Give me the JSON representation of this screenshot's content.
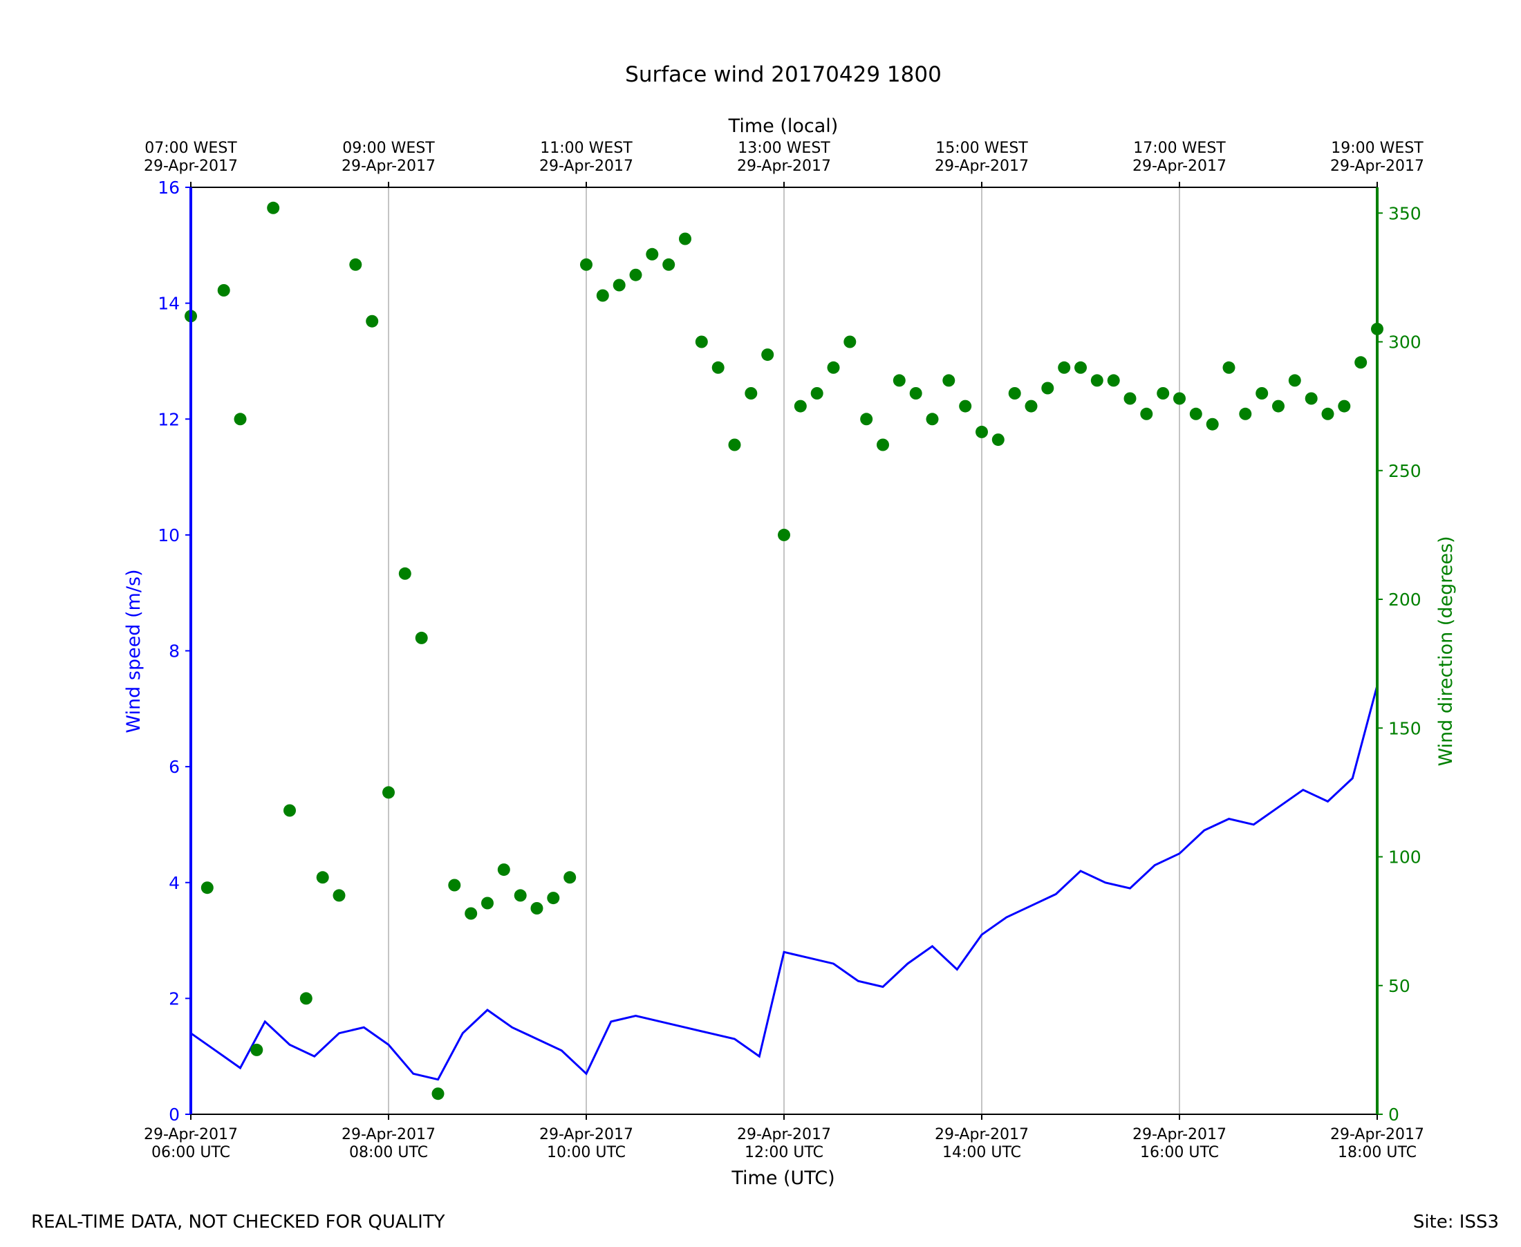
{
  "chart_data": {
    "type": "line",
    "title": "Surface wind 20170429 1800",
    "xlabel_bottom": "Time (UTC)",
    "xlabel_top": "Time (local)",
    "ylabel_left": "Wind speed (m/s)",
    "ylabel_right": "Wind direction (degrees)",
    "ylim_left": [
      0,
      16
    ],
    "ylim_right": [
      0,
      360
    ],
    "xlim": [
      "2017-04-29 06:00",
      "2017-04-29 18:00"
    ],
    "grid": "vertical lines at each bottom x tick",
    "left_ticks": [
      "0",
      "2",
      "4",
      "6",
      "8",
      "10",
      "12",
      "14",
      "16"
    ],
    "right_ticks": [
      "0",
      "50",
      "100",
      "150",
      "200",
      "250",
      "300",
      "350"
    ],
    "bottom_ticks": [
      {
        "date": "29-Apr-2017",
        "time": "06:00 UTC"
      },
      {
        "date": "29-Apr-2017",
        "time": "08:00 UTC"
      },
      {
        "date": "29-Apr-2017",
        "time": "10:00 UTC"
      },
      {
        "date": "29-Apr-2017",
        "time": "12:00 UTC"
      },
      {
        "date": "29-Apr-2017",
        "time": "14:00 UTC"
      },
      {
        "date": "29-Apr-2017",
        "time": "16:00 UTC"
      },
      {
        "date": "29-Apr-2017",
        "time": "18:00 UTC"
      }
    ],
    "top_ticks": [
      {
        "time": "07:00 WEST",
        "date": "29-Apr-2017"
      },
      {
        "time": "09:00 WEST",
        "date": "29-Apr-2017"
      },
      {
        "time": "11:00 WEST",
        "date": "29-Apr-2017"
      },
      {
        "time": "13:00 WEST",
        "date": "29-Apr-2017"
      },
      {
        "time": "15:00 WEST",
        "date": "29-Apr-2017"
      },
      {
        "time": "17:00 WEST",
        "date": "29-Apr-2017"
      },
      {
        "time": "19:00 WEST",
        "date": "29-Apr-2017"
      }
    ],
    "series": [
      {
        "axis": "left",
        "style": "line",
        "color": "#0000ff",
        "note": "wind speed (m/s) sampled every 15 min, 06:00-18:00 UTC",
        "x": [
          "06:00",
          "06:15",
          "06:30",
          "06:45",
          "07:00",
          "07:15",
          "07:30",
          "07:45",
          "08:00",
          "08:15",
          "08:30",
          "08:45",
          "09:00",
          "09:15",
          "09:30",
          "09:45",
          "10:00",
          "10:15",
          "10:30",
          "10:45",
          "11:00",
          "11:15",
          "11:30",
          "11:45",
          "12:00",
          "12:15",
          "12:30",
          "12:45",
          "13:00",
          "13:15",
          "13:30",
          "13:45",
          "14:00",
          "14:15",
          "14:30",
          "14:45",
          "15:00",
          "15:15",
          "15:30",
          "15:45",
          "16:00",
          "16:15",
          "16:30",
          "16:45",
          "17:00",
          "17:15",
          "17:30",
          "17:45",
          "18:00"
        ],
        "values": [
          1.4,
          1.1,
          0.8,
          1.6,
          1.2,
          1.0,
          1.4,
          1.5,
          1.2,
          0.7,
          0.6,
          1.4,
          1.8,
          1.5,
          1.3,
          1.1,
          0.7,
          1.6,
          1.7,
          1.6,
          1.5,
          1.4,
          1.3,
          1.0,
          2.8,
          2.7,
          2.6,
          2.3,
          2.2,
          2.6,
          2.9,
          2.5,
          3.1,
          3.4,
          3.6,
          3.8,
          4.2,
          4.0,
          3.9,
          4.3,
          4.5,
          4.9,
          5.1,
          5.0,
          5.3,
          5.6,
          5.4,
          5.8,
          7.4
        ]
      },
      {
        "axis": "right",
        "style": "scatter",
        "color": "#008000",
        "note": "wind direction (degrees) sampled every 10 min, 06:00-18:00 UTC",
        "x": [
          "06:00",
          "06:10",
          "06:20",
          "06:30",
          "06:40",
          "06:50",
          "07:00",
          "07:10",
          "07:20",
          "07:30",
          "07:40",
          "07:50",
          "08:00",
          "08:10",
          "08:20",
          "08:30",
          "08:40",
          "08:50",
          "09:00",
          "09:10",
          "09:20",
          "09:30",
          "09:40",
          "09:50",
          "10:00",
          "10:10",
          "10:20",
          "10:30",
          "10:40",
          "10:50",
          "11:00",
          "11:10",
          "11:20",
          "11:30",
          "11:40",
          "11:50",
          "12:00",
          "12:10",
          "12:20",
          "12:30",
          "12:40",
          "12:50",
          "13:00",
          "13:10",
          "13:20",
          "13:30",
          "13:40",
          "13:50",
          "14:00",
          "14:10",
          "14:20",
          "14:30",
          "14:40",
          "14:50",
          "15:00",
          "15:10",
          "15:20",
          "15:30",
          "15:40",
          "15:50",
          "16:00",
          "16:10",
          "16:20",
          "16:30",
          "16:40",
          "16:50",
          "17:00",
          "17:10",
          "17:20",
          "17:30",
          "17:40",
          "17:50",
          "18:00"
        ],
        "values": [
          310,
          88,
          320,
          270,
          25,
          352,
          118,
          45,
          92,
          85,
          330,
          308,
          125,
          210,
          185,
          8,
          89,
          78,
          82,
          95,
          85,
          80,
          84,
          92,
          330,
          318,
          322,
          326,
          334,
          330,
          340,
          300,
          290,
          260,
          280,
          295,
          225,
          275,
          280,
          290,
          300,
          270,
          260,
          285,
          280,
          270,
          285,
          275,
          265,
          262,
          280,
          275,
          282,
          290,
          290,
          285,
          285,
          278,
          272,
          280,
          278,
          272,
          268,
          290,
          272,
          280,
          275,
          285,
          278,
          272,
          275,
          292,
          305
        ]
      }
    ]
  },
  "footer": {
    "left": "REAL-TIME DATA, NOT CHECKED FOR QUALITY",
    "right": "Site: ISS3"
  },
  "colors": {
    "speed": "#0000ff",
    "direction": "#008000",
    "axes": "#000000",
    "grid": "#b0b0b0"
  }
}
